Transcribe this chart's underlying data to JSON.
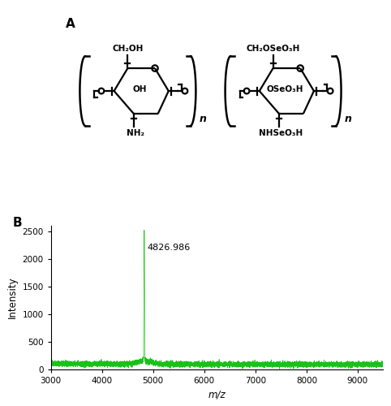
{
  "panel_A_label": "A",
  "panel_B_label": "B",
  "peak_mz": 4826.986,
  "peak_intensity": 2350,
  "peak_label": "4826.986",
  "xlim": [
    3000,
    9500
  ],
  "ylim": [
    0,
    2600
  ],
  "yticks": [
    0,
    500,
    1000,
    1500,
    2000,
    2500
  ],
  "xticks": [
    3000,
    4000,
    5000,
    6000,
    7000,
    8000,
    9000
  ],
  "xlabel": "m/z",
  "ylabel": "Intensity",
  "line_color": "#00bb00",
  "noise_baseline": 90,
  "background_color": "#ffffff",
  "struct1_label1": "CH₂OH",
  "struct1_label2": "OH",
  "struct1_label3": "NH₂",
  "struct2_label1": "CH₂OSeO₃H",
  "struct2_label2": "OSeO₃H",
  "struct2_label3": "NHSeO₃H",
  "subscript_n": "n"
}
